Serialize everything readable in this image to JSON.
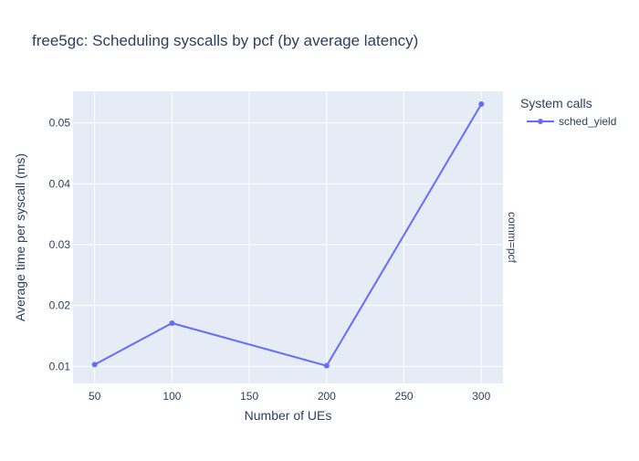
{
  "colors": {
    "plot_background": "#e5ecf6",
    "grid": "#ffffff",
    "text": "#2a3f5f",
    "series_sched_yield": "#636efa"
  },
  "chart_data": {
    "type": "line",
    "title": "free5gc: Scheduling syscalls by pcf (by average latency)",
    "xlabel": "Number of UEs",
    "ylabel": "Average time per syscall (ms)",
    "xlim": [
      36,
      314
    ],
    "ylim": [
      0.0072,
      0.0552
    ],
    "x_ticks": [
      50,
      100,
      150,
      200,
      250,
      300
    ],
    "y_ticks": [
      0.01,
      0.02,
      0.03,
      0.04,
      0.05
    ],
    "x_tick_labels": [
      "50",
      "100",
      "150",
      "200",
      "250",
      "300"
    ],
    "y_tick_labels": [
      "0.01",
      "0.02",
      "0.03",
      "0.04",
      "0.05"
    ],
    "grid": true,
    "legend": {
      "title": "System calls",
      "placement": "right"
    },
    "facet_label": "comm=pcf",
    "x": [
      50,
      100,
      200,
      300
    ],
    "series": [
      {
        "name": "sched_yield",
        "values": [
          0.0103,
          0.0171,
          0.0101,
          0.0531
        ],
        "color": "#636efa"
      }
    ]
  }
}
